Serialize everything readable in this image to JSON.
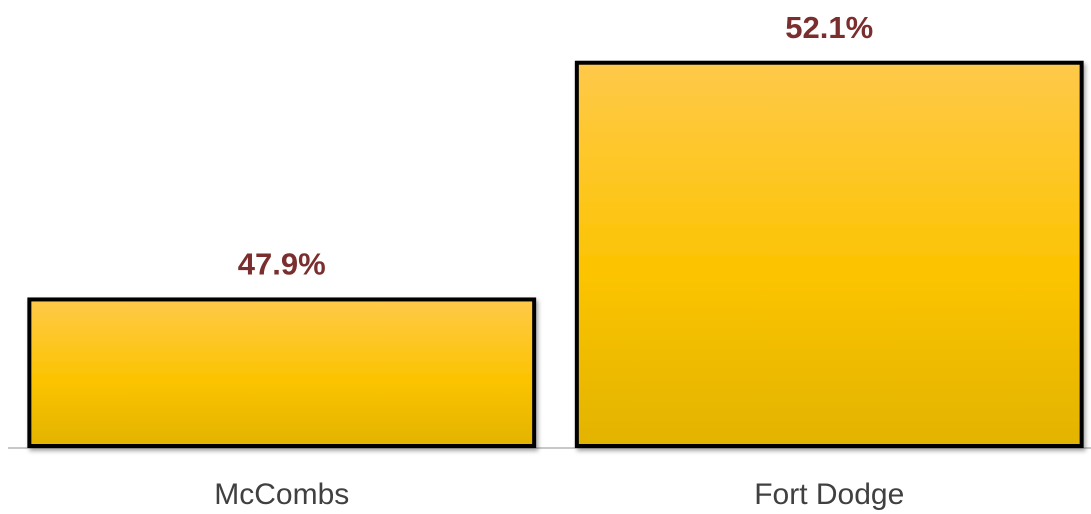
{
  "chart_data": {
    "type": "bar",
    "categories": [
      "McCombs",
      "Fort Dodge"
    ],
    "values": [
      47.9,
      52.1
    ],
    "value_labels": [
      "47.9%",
      "52.1%"
    ],
    "color": "#fcc400",
    "ylim": [
      45.3,
      53
    ]
  }
}
